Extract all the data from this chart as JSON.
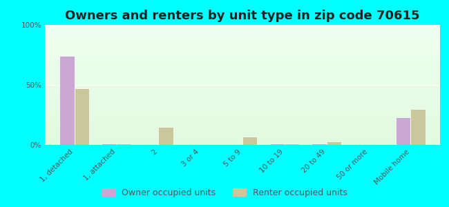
{
  "title": "Owners and renters by unit type in zip code 70615",
  "categories": [
    "1, detached",
    "1, attached",
    "2",
    "3 or 4",
    "5 to 9",
    "10 to 19",
    "20 to 49",
    "50 or more",
    "Mobile home"
  ],
  "owner_values": [
    74,
    1,
    0,
    0,
    0,
    1,
    1,
    0,
    23
  ],
  "renter_values": [
    47,
    1,
    15,
    0,
    7,
    1,
    3,
    0,
    30
  ],
  "owner_color": "#c9a8d4",
  "renter_color": "#c8c89a",
  "bg_color": "#00ffff",
  "ylabel_ticks": [
    "0%",
    "50%",
    "100%"
  ],
  "ytick_vals": [
    0,
    50,
    100
  ],
  "ylim": [
    0,
    100
  ],
  "bar_width": 0.35,
  "title_fontsize": 13,
  "tick_fontsize": 7.5,
  "legend_fontsize": 9
}
